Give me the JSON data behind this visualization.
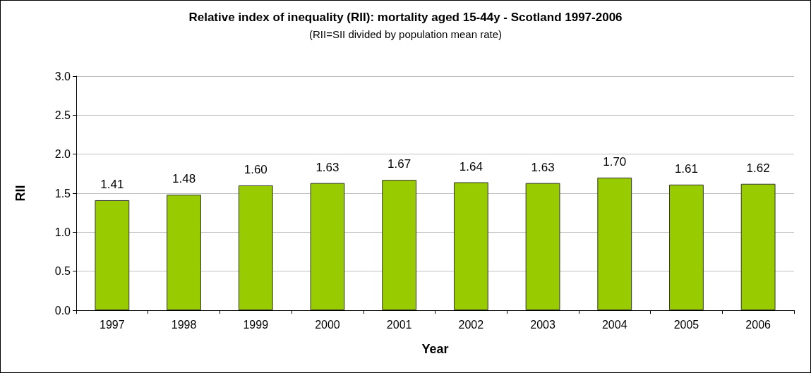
{
  "chart_data": {
    "type": "bar",
    "title": "Relative index of inequality (RII): mortality aged 15-44y - Scotland 1997-2006",
    "subtitle": "(RII=SII divided by population mean rate)",
    "xlabel": "Year",
    "ylabel": "RII",
    "categories": [
      "1997",
      "1998",
      "1999",
      "2000",
      "2001",
      "2002",
      "2003",
      "2004",
      "2005",
      "2006"
    ],
    "values": [
      1.41,
      1.48,
      1.6,
      1.63,
      1.67,
      1.64,
      1.63,
      1.7,
      1.61,
      1.62
    ],
    "value_labels": [
      "1.41",
      "1.48",
      "1.60",
      "1.63",
      "1.67",
      "1.64",
      "1.63",
      "1.70",
      "1.61",
      "1.62"
    ],
    "color": "#99cc00",
    "ylim": [
      0,
      3
    ],
    "yticks": [
      {
        "value": 0,
        "label": "0.0"
      },
      {
        "value": 0.5,
        "label": "0.5"
      },
      {
        "value": 1,
        "label": "1.0"
      },
      {
        "value": 1.5,
        "label": "1.5"
      },
      {
        "value": 2,
        "label": "2.0"
      },
      {
        "value": 2.5,
        "label": "2.5"
      },
      {
        "value": 3,
        "label": "3.0"
      }
    ],
    "grid": "y"
  }
}
